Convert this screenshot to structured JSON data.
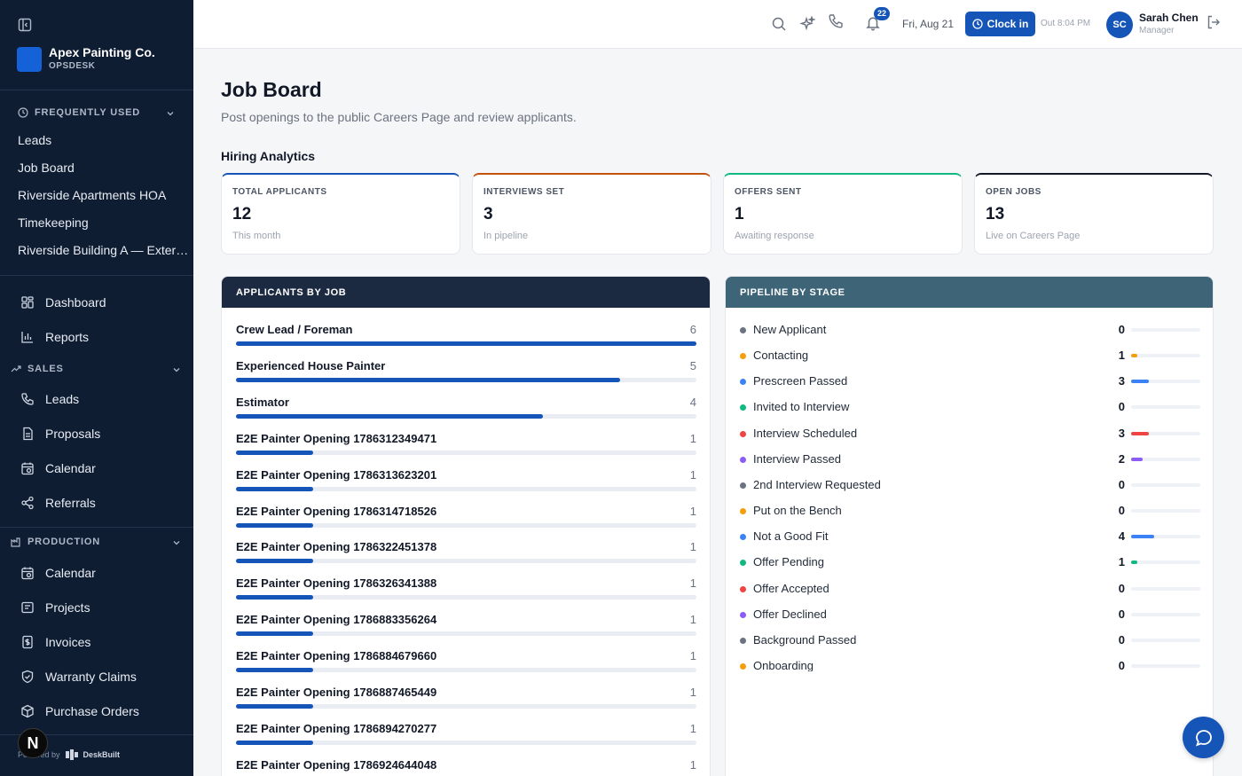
{
  "brand": {
    "name": "Apex Painting Co.",
    "sub": "OPSDESK",
    "logo_color": "#1561d8"
  },
  "sidebar": {
    "frequent_label": "FREQUENTLY USED",
    "frequent": [
      "Leads",
      "Job Board",
      "Riverside Apartments HOA",
      "Timekeeping",
      "Riverside Building A — Exter…"
    ],
    "main": [
      "Dashboard",
      "Reports"
    ],
    "sales_label": "SALES",
    "sales": [
      "Leads",
      "Proposals",
      "Calendar",
      "Referrals"
    ],
    "production_label": "PRODUCTION",
    "production": [
      "Calendar",
      "Projects",
      "Invoices",
      "Warranty Claims",
      "Purchase Orders"
    ],
    "footer_prefix": "Powered by",
    "footer_brand": "DeskBuilt",
    "n_badge": "N"
  },
  "topbar": {
    "notifications": "22",
    "date": "Fri, Aug 21",
    "clock_label": "Clock in",
    "out_time": "Out 8:04 PM",
    "avatar": "SC",
    "user_name": "Sarah Chen",
    "user_role": "Manager"
  },
  "page": {
    "title": "Job Board",
    "subtitle": "Post openings to the public Careers Page and review applicants.",
    "analytics_title": "Hiring Analytics"
  },
  "stats": [
    {
      "label": "TOTAL APPLICANTS",
      "value": "12",
      "note": "This month",
      "color": "#1655b8"
    },
    {
      "label": "INTERVIEWS SET",
      "value": "3",
      "note": "In pipeline",
      "color": "#c2530f"
    },
    {
      "label": "OFFERS SENT",
      "value": "1",
      "note": "Awaiting response",
      "color": "#10b981"
    },
    {
      "label": "OPEN JOBS",
      "value": "13",
      "note": "Live on Careers Page",
      "color": "#111827"
    }
  ],
  "applicants_panel": {
    "title": "APPLICANTS BY JOB",
    "max": 6,
    "jobs": [
      {
        "name": "Crew Lead / Foreman",
        "count": 6
      },
      {
        "name": "Experienced House Painter",
        "count": 5
      },
      {
        "name": "Estimator",
        "count": 4
      },
      {
        "name": "E2E Painter Opening 1786312349471",
        "count": 1
      },
      {
        "name": "E2E Painter Opening 1786313623201",
        "count": 1
      },
      {
        "name": "E2E Painter Opening 1786314718526",
        "count": 1
      },
      {
        "name": "E2E Painter Opening 1786322451378",
        "count": 1
      },
      {
        "name": "E2E Painter Opening 1786326341388",
        "count": 1
      },
      {
        "name": "E2E Painter Opening 1786883356264",
        "count": 1
      },
      {
        "name": "E2E Painter Opening 1786884679660",
        "count": 1
      },
      {
        "name": "E2E Painter Opening 1786887465449",
        "count": 1
      },
      {
        "name": "E2E Painter Opening 1786894270277",
        "count": 1
      },
      {
        "name": "E2E Painter Opening 1786924644048",
        "count": 1
      }
    ]
  },
  "pipeline_panel": {
    "title": "PIPELINE BY STAGE",
    "max": 12,
    "stages": [
      {
        "name": "New Applicant",
        "count": 0,
        "color": "#6b7280"
      },
      {
        "name": "Contacting",
        "count": 1,
        "color": "#f59e0b"
      },
      {
        "name": "Prescreen Passed",
        "count": 3,
        "color": "#3b82f6"
      },
      {
        "name": "Invited to Interview",
        "count": 0,
        "color": "#10b981"
      },
      {
        "name": "Interview Scheduled",
        "count": 3,
        "color": "#ef4444"
      },
      {
        "name": "Interview Passed",
        "count": 2,
        "color": "#8b5cf6"
      },
      {
        "name": "2nd Interview Requested",
        "count": 0,
        "color": "#6b7280"
      },
      {
        "name": "Put on the Bench",
        "count": 0,
        "color": "#f59e0b"
      },
      {
        "name": "Not a Good Fit",
        "count": 4,
        "color": "#3b82f6"
      },
      {
        "name": "Offer Pending",
        "count": 1,
        "color": "#10b981"
      },
      {
        "name": "Offer Accepted",
        "count": 0,
        "color": "#ef4444"
      },
      {
        "name": "Offer Declined",
        "count": 0,
        "color": "#8b5cf6"
      },
      {
        "name": "Background Passed",
        "count": 0,
        "color": "#6b7280"
      },
      {
        "name": "Onboarding",
        "count": 0,
        "color": "#f59e0b"
      }
    ]
  },
  "colors": {
    "accent": "#1655b8",
    "sidebar_bg": "#0f1d33",
    "applicants_header": "#1b2a41",
    "pipeline_header": "#3e6478"
  }
}
